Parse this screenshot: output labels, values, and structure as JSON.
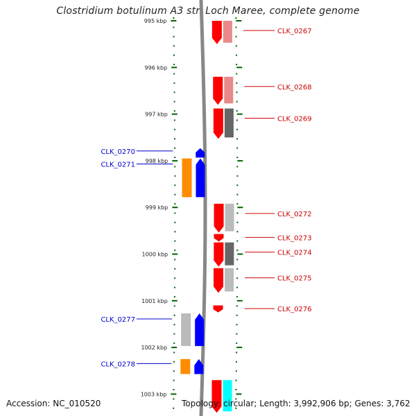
{
  "title": "Clostridium botulinum A3 str. Loch Maree, complete genome",
  "footer": {
    "accession": "Accession: NC_010520",
    "topology": "Topology: circular; Length: 3,992,906 bp; Genes: 3,762"
  },
  "ticks": [
    {
      "label": "995 kbp",
      "kbp": 995
    },
    {
      "label": "996 kbp",
      "kbp": 996
    },
    {
      "label": "997 kbp",
      "kbp": 997
    },
    {
      "label": "998 kbp",
      "kbp": 998
    },
    {
      "label": "999 kbp",
      "kbp": 999
    },
    {
      "label": "1000 kbp",
      "kbp": 1000
    },
    {
      "label": "1001 kbp",
      "kbp": 1001
    },
    {
      "label": "1002 kbp",
      "kbp": 1002
    },
    {
      "label": "1003 kbp",
      "kbp": 1003
    }
  ],
  "colors": {
    "forward_gene": "#ff0000",
    "reverse_gene": "#0000ff",
    "forward_label": "#cc0000",
    "reverse_label": "#0000cc",
    "orange": "#ff8c00",
    "cyan": "#00ffff",
    "tick": "#006400",
    "backbone": "#888888"
  },
  "genes": [
    {
      "name": "CLK_0267",
      "strand": "+",
      "start_kbp": 995.0,
      "end_kbp": 995.5,
      "feature_color": "#ff0000",
      "annotation_color": "#e88a8a",
      "labeled": true
    },
    {
      "name": "CLK_0268",
      "strand": "+",
      "start_kbp": 996.2,
      "end_kbp": 996.8,
      "feature_color": "#ff0000",
      "annotation_color": "#e88a8a",
      "labeled": true
    },
    {
      "name": "CLK_0269",
      "strand": "+",
      "start_kbp": 996.88,
      "end_kbp": 997.53,
      "feature_color": "#ff0000",
      "annotation_color": "#666666",
      "labeled": true
    },
    {
      "name": "CLK_0270",
      "strand": "-",
      "start_kbp": 997.73,
      "end_kbp": 997.93,
      "feature_color": "#0000ff",
      "annotation_color": null,
      "labeled": true
    },
    {
      "name": "CLK_0271",
      "strand": "-",
      "start_kbp": 997.95,
      "end_kbp": 998.78,
      "feature_color": "#0000ff",
      "annotation_color": "#ff8c00",
      "labeled": true
    },
    {
      "name": "CLK_0272",
      "strand": "+",
      "start_kbp": 998.92,
      "end_kbp": 999.54,
      "feature_color": "#ff0000",
      "annotation_color": "#bbbbbb",
      "labeled": true
    },
    {
      "name": "CLK_0273",
      "strand": "+",
      "start_kbp": 999.57,
      "end_kbp": 999.73,
      "feature_color": "#ff0000",
      "annotation_color": null,
      "labeled": true
    },
    {
      "name": "CLK_0274",
      "strand": "+",
      "start_kbp": 999.75,
      "end_kbp": 1000.27,
      "feature_color": "#ff0000",
      "annotation_color": "#666666",
      "labeled": true
    },
    {
      "name": "CLK_0275",
      "strand": "+",
      "start_kbp": 1000.3,
      "end_kbp": 1000.83,
      "feature_color": "#ff0000",
      "annotation_color": "#bbbbbb",
      "labeled": true
    },
    {
      "name": "CLK_0276",
      "strand": "+",
      "start_kbp": 1001.1,
      "end_kbp": 1001.25,
      "feature_color": "#ff0000",
      "annotation_color": null,
      "labeled": true
    },
    {
      "name": "CLK_0277",
      "strand": "-",
      "start_kbp": 1001.27,
      "end_kbp": 1001.97,
      "feature_color": "#0000ff",
      "annotation_color": "#bbbbbb",
      "labeled": true
    },
    {
      "name": "CLK_0278",
      "strand": "-",
      "start_kbp": 1002.25,
      "end_kbp": 1002.57,
      "feature_color": "#0000ff",
      "annotation_color": "#ff8c00",
      "labeled": true
    },
    {
      "name": "",
      "strand": "+",
      "start_kbp": 1002.7,
      "end_kbp": 1003.4,
      "feature_color": "#ff0000",
      "annotation_color": "#00ffff",
      "labeled": false
    }
  ]
}
